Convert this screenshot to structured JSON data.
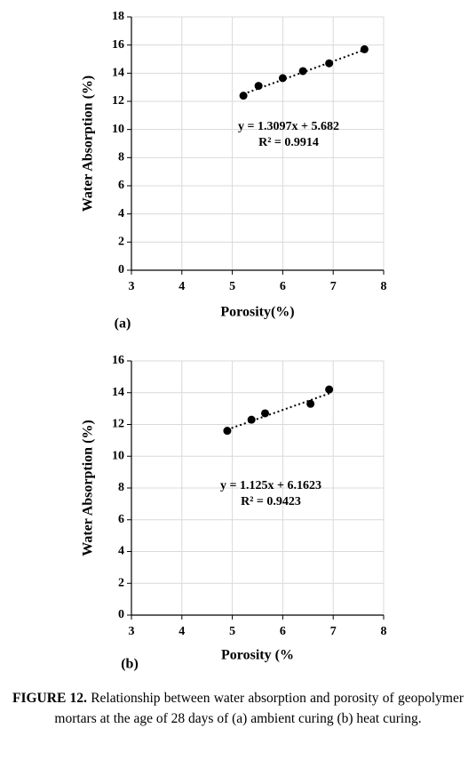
{
  "chart_data": [
    {
      "type": "scatter",
      "panel_label": "(a)",
      "x_label": "Porosity(%)",
      "y_label": "Water Absorption (%)",
      "series": [
        {
          "color": "#000000",
          "x": [
            5.22,
            5.52,
            6.0,
            6.4,
            6.92,
            7.62
          ],
          "values": [
            12.4,
            13.1,
            13.65,
            14.15,
            14.7,
            15.7
          ]
        }
      ],
      "trendline": {
        "slope": 1.3097,
        "intercept": 5.682,
        "equation": "y = 1.3097x + 5.682",
        "r2": "R² = 0.9914"
      },
      "xlim": [
        3,
        8
      ],
      "xticks": [
        3,
        4,
        5,
        6,
        7,
        8
      ],
      "ylim": [
        0,
        18
      ],
      "yticks": [
        0,
        2,
        4,
        6,
        8,
        10,
        12,
        14,
        16,
        18
      ],
      "grid": true
    },
    {
      "type": "scatter",
      "panel_label": "(b)",
      "x_label": "Porosity (%",
      "y_label": "Water Absorption (%)",
      "series": [
        {
          "color": "#000000",
          "x": [
            4.9,
            5.38,
            5.65,
            6.55,
            6.92
          ],
          "values": [
            11.6,
            12.3,
            12.7,
            13.3,
            14.2
          ]
        }
      ],
      "trendline": {
        "slope": 1.125,
        "intercept": 6.1623,
        "equation": "y = 1.125x + 6.1623",
        "r2": "R² = 0.9423"
      },
      "xlim": [
        3,
        8
      ],
      "xticks": [
        3,
        4,
        5,
        6,
        7,
        8
      ],
      "ylim": [
        0,
        16
      ],
      "yticks": [
        0,
        2,
        4,
        6,
        8,
        10,
        12,
        14,
        16
      ],
      "grid": true
    }
  ],
  "caption": {
    "label": "FIGURE 12.",
    "text": "Relationship between water absorption and porosity of geopolymer mortars at the age of 28 days of (a) ambient curing (b) heat curing."
  }
}
